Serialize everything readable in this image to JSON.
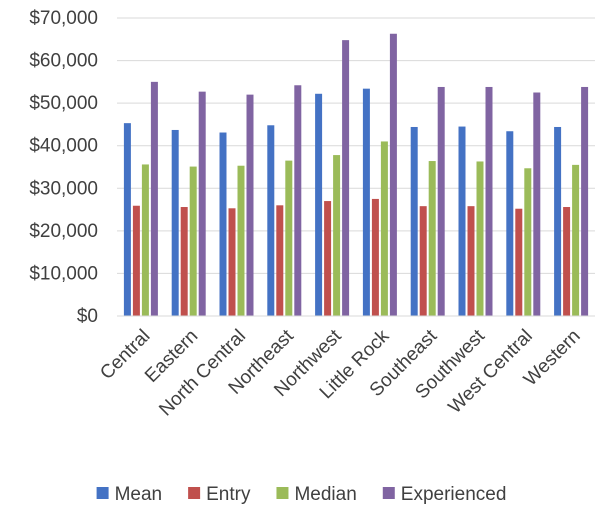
{
  "chart_data": {
    "type": "bar",
    "title": "",
    "xlabel": "",
    "ylabel": "",
    "ylim": [
      0,
      70000
    ],
    "y_ticks": [
      0,
      10000,
      20000,
      30000,
      40000,
      50000,
      60000,
      70000
    ],
    "y_tick_labels": [
      "$0",
      "$10,000",
      "$20,000",
      "$30,000",
      "$40,000",
      "$50,000",
      "$60,000",
      "$70,000"
    ],
    "grid": true,
    "legend_position": "bottom",
    "categories": [
      "Central",
      "Eastern",
      "North Central",
      "Northeast",
      "Northwest",
      "Little Rock",
      "Southeast",
      "Southwest",
      "West Central",
      "Western"
    ],
    "series": [
      {
        "name": "Mean",
        "color": "#4472C4",
        "values": [
          45300,
          43700,
          43100,
          44800,
          52200,
          53400,
          44400,
          44500,
          43400,
          44400
        ]
      },
      {
        "name": "Entry",
        "color": "#C0504D",
        "values": [
          25900,
          25600,
          25300,
          26000,
          27000,
          27500,
          25800,
          25800,
          25200,
          25600
        ]
      },
      {
        "name": "Median",
        "color": "#9BBB59",
        "values": [
          35600,
          35100,
          35300,
          36500,
          37800,
          41000,
          36400,
          36300,
          34700,
          35500
        ]
      },
      {
        "name": "Experienced",
        "color": "#8064A2",
        "values": [
          55000,
          52700,
          52000,
          54200,
          64800,
          66300,
          53800,
          53800,
          52500,
          53800
        ]
      }
    ]
  }
}
